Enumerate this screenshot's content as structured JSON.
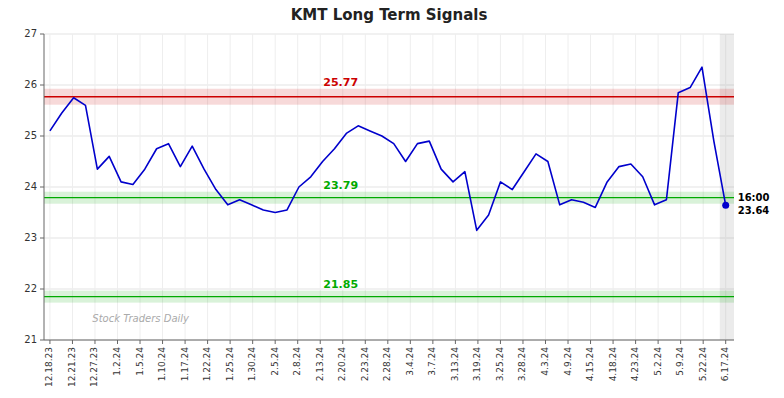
{
  "chart_data": {
    "type": "line",
    "title": "KMT Long Term Signals",
    "x": [
      0,
      1,
      2,
      3,
      4,
      5,
      6,
      7,
      8,
      9,
      10,
      11,
      12,
      13,
      14,
      15,
      16,
      17,
      18,
      19,
      20,
      21,
      22,
      23,
      24,
      25,
      26,
      27,
      28,
      29,
      30,
      31,
      32,
      33,
      34,
      35,
      36,
      37,
      38,
      39,
      40,
      41,
      42,
      43,
      44,
      45,
      46,
      47,
      48,
      49,
      50,
      51,
      52,
      53,
      54,
      55,
      56,
      57
    ],
    "values": [
      25.1,
      25.45,
      25.75,
      25.6,
      24.35,
      24.6,
      24.1,
      24.05,
      24.35,
      24.75,
      24.85,
      24.4,
      24.8,
      24.35,
      23.95,
      23.65,
      23.75,
      23.65,
      23.55,
      23.5,
      23.55,
      24.0,
      24.2,
      24.5,
      24.75,
      25.05,
      25.2,
      25.1,
      25.0,
      24.85,
      24.5,
      24.85,
      24.9,
      24.35,
      24.1,
      24.3,
      23.15,
      23.45,
      24.1,
      23.95,
      24.3,
      24.65,
      24.5,
      23.65,
      23.75,
      23.7,
      23.6,
      24.1,
      24.4,
      24.45,
      24.2,
      23.65,
      23.75,
      25.85,
      25.95,
      26.35,
      24.9,
      23.64
    ],
    "color": "#0000cc",
    "xlim": [
      -0.5,
      57.7
    ],
    "xticks": [
      {
        "value": 0,
        "label": "12.18.23"
      },
      {
        "value": 1.9,
        "label": "12.21.23"
      },
      {
        "value": 3.8,
        "label": "12.27.23"
      },
      {
        "value": 5.7,
        "label": "1.2.24"
      },
      {
        "value": 7.6,
        "label": "1.5.24"
      },
      {
        "value": 9.5,
        "label": "1.10.24"
      },
      {
        "value": 11.4,
        "label": "1.17.24"
      },
      {
        "value": 13.3,
        "label": "1.22.24"
      },
      {
        "value": 15.2,
        "label": "1.25.24"
      },
      {
        "value": 17.1,
        "label": "1.30.24"
      },
      {
        "value": 19,
        "label": "2.5.24"
      },
      {
        "value": 20.9,
        "label": "2.8.24"
      },
      {
        "value": 22.8,
        "label": "2.13.24"
      },
      {
        "value": 24.7,
        "label": "2.20.24"
      },
      {
        "value": 26.6,
        "label": "2.23.24"
      },
      {
        "value": 28.5,
        "label": "2.28.24"
      },
      {
        "value": 30.4,
        "label": "3.4.24"
      },
      {
        "value": 32.3,
        "label": "3.7.24"
      },
      {
        "value": 34.2,
        "label": "3.13.24"
      },
      {
        "value": 36.1,
        "label": "3.19.24"
      },
      {
        "value": 38,
        "label": "3.25.24"
      },
      {
        "value": 39.9,
        "label": "3.28.24"
      },
      {
        "value": 41.8,
        "label": "4.3.24"
      },
      {
        "value": 43.7,
        "label": "4.9.24"
      },
      {
        "value": 45.6,
        "label": "4.15.24"
      },
      {
        "value": 47.5,
        "label": "4.18.24"
      },
      {
        "value": 49.4,
        "label": "4.23.24"
      },
      {
        "value": 51.3,
        "label": "5.2.24"
      },
      {
        "value": 53.2,
        "label": "5.9.24"
      },
      {
        "value": 55.1,
        "label": "5.22.24"
      },
      {
        "value": 57,
        "label": "6.17.24"
      }
    ],
    "ylim": [
      21,
      27
    ],
    "yticks": [
      21,
      22,
      23,
      24,
      25,
      26,
      27
    ],
    "grid": true,
    "reference_lines": [
      {
        "value": 25.77,
        "color": "#cc0000"
      },
      {
        "value": 23.79,
        "color": "#00aa00"
      },
      {
        "value": 21.85,
        "color": "#00aa00"
      }
    ],
    "annotations": [
      {
        "text": "16:00",
        "value": 23.64
      },
      {
        "text": "Stock Traders Daily"
      }
    ]
  }
}
